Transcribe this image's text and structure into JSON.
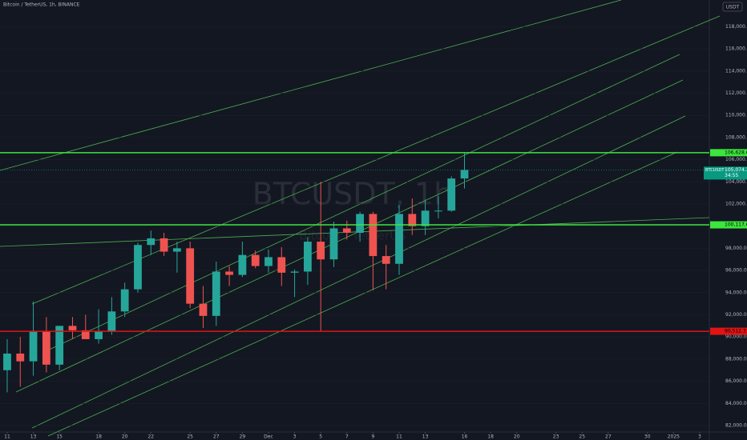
{
  "header": {
    "title": "Bitcoin / TetherUS, 1h, BINANCE",
    "currency": "USDT"
  },
  "chart_data": {
    "type": "candlestick",
    "watermark": "BTCUSDT, 1h",
    "watermark_sub": "Bitcoin / TetherUS",
    "x": [
      0,
      1,
      2,
      3,
      4,
      5,
      6,
      7,
      8,
      9,
      10,
      11,
      12,
      13,
      14,
      15,
      16,
      17,
      18,
      19,
      20,
      21,
      22,
      23,
      24,
      25,
      26,
      27,
      28,
      29,
      30,
      31,
      32,
      33,
      34,
      35
    ],
    "open": [
      87000,
      88500,
      87800,
      90500,
      87500,
      91000,
      90600,
      89800,
      90500,
      92300,
      94300,
      98300,
      98900,
      97700,
      98000,
      93000,
      91900,
      95900,
      95600,
      97400,
      96400,
      97200,
      95800,
      95900,
      98600,
      97000,
      99800,
      99400,
      101100,
      97300,
      96600,
      101100,
      100000,
      101400,
      101400,
      104300
    ],
    "high": [
      89800,
      90000,
      93200,
      91800,
      91000,
      91800,
      92000,
      92500,
      93600,
      94900,
      98500,
      99600,
      99400,
      98600,
      98600,
      94600,
      96800,
      96400,
      98600,
      97800,
      97900,
      98100,
      96100,
      99000,
      104000,
      100400,
      100500,
      101300,
      101300,
      98300,
      101900,
      102500,
      102400,
      102700,
      104500,
      106600
    ],
    "low": [
      85000,
      85500,
      86500,
      86800,
      87000,
      89800,
      90000,
      89400,
      90200,
      91800,
      94000,
      97400,
      97300,
      95800,
      92600,
      90800,
      91000,
      94600,
      95400,
      96200,
      95800,
      94600,
      93600,
      94700,
      90500,
      96300,
      98800,
      98600,
      94200,
      94300,
      95600,
      99200,
      99200,
      100700,
      101300,
      103400
    ],
    "close": [
      88500,
      87800,
      90500,
      87500,
      91000,
      90600,
      89800,
      90500,
      92300,
      94300,
      98300,
      98900,
      97700,
      98000,
      93000,
      91900,
      95900,
      95600,
      97400,
      96400,
      97200,
      95800,
      95900,
      98600,
      97000,
      99800,
      99400,
      101100,
      97300,
      96600,
      101100,
      100000,
      101400,
      101400,
      104300,
      105074.33
    ],
    "up_color": "#26a69a",
    "down_color": "#ef5350",
    "xlim": [
      -0.55,
      53.74
    ],
    "xticks": [
      {
        "value": 0,
        "label": "11"
      },
      {
        "value": 2,
        "label": "13"
      },
      {
        "value": 4,
        "label": "15"
      },
      {
        "value": 7,
        "label": "18"
      },
      {
        "value": 9,
        "label": "20"
      },
      {
        "value": 11,
        "label": "22"
      },
      {
        "value": 14,
        "label": "25"
      },
      {
        "value": 16,
        "label": "27"
      },
      {
        "value": 18,
        "label": "29"
      },
      {
        "value": 20,
        "label": "Dec"
      },
      {
        "value": 22,
        "label": "3"
      },
      {
        "value": 24,
        "label": "5"
      },
      {
        "value": 26,
        "label": "7"
      },
      {
        "value": 28,
        "label": "9"
      },
      {
        "value": 30,
        "label": "11"
      },
      {
        "value": 32,
        "label": "13"
      },
      {
        "value": 35,
        "label": "16"
      },
      {
        "value": 37,
        "label": "18"
      },
      {
        "value": 39,
        "label": "20"
      },
      {
        "value": 42,
        "label": "23"
      },
      {
        "value": 44,
        "label": "25"
      },
      {
        "value": 46,
        "label": "27"
      },
      {
        "value": 49,
        "label": "30"
      },
      {
        "value": 51,
        "label": "2025"
      },
      {
        "value": 53,
        "label": "3"
      }
    ],
    "ylim": [
      81060,
      120410
    ],
    "yticks": [
      {
        "value": 82000,
        "label": "82,000.00"
      },
      {
        "value": 84000,
        "label": "84,000.00"
      },
      {
        "value": 86000,
        "label": "86,000.00"
      },
      {
        "value": 88000,
        "label": "88,000.00"
      },
      {
        "value": 90000,
        "label": "90,000.00"
      },
      {
        "value": 92000,
        "label": "92,000.00"
      },
      {
        "value": 94000,
        "label": "94,000.00"
      },
      {
        "value": 96000,
        "label": "96,000.00"
      },
      {
        "value": 98000,
        "label": "98,000.00"
      },
      {
        "value": 100000,
        "label": "100,000.00"
      },
      {
        "value": 102000,
        "label": "102,000.00"
      },
      {
        "value": 104000,
        "label": "104,000.00"
      },
      {
        "value": 106000,
        "label": "106,000.00"
      },
      {
        "value": 108000,
        "label": "108,000.00"
      },
      {
        "value": 110000,
        "label": "110,000.00"
      },
      {
        "value": 112000,
        "label": "112,000.00"
      },
      {
        "value": 114000,
        "label": "114,000.00"
      },
      {
        "value": 116000,
        "label": "116,000.00"
      },
      {
        "value": 118000,
        "label": "118,000.00"
      }
    ],
    "levels": [
      {
        "value": 106628.68,
        "label": "106,628.68",
        "color": "#3ce63c"
      },
      {
        "value": 100117.64,
        "label": "100,117.64",
        "color": "#3ce63c"
      },
      {
        "value": 90512.31,
        "label": "90,512.31",
        "color": "#e01414"
      }
    ],
    "last": {
      "name": "BTCUSDT",
      "value": 105074.33,
      "label": "105,074.33",
      "countdown": "34:55",
      "color": "#089981"
    }
  }
}
